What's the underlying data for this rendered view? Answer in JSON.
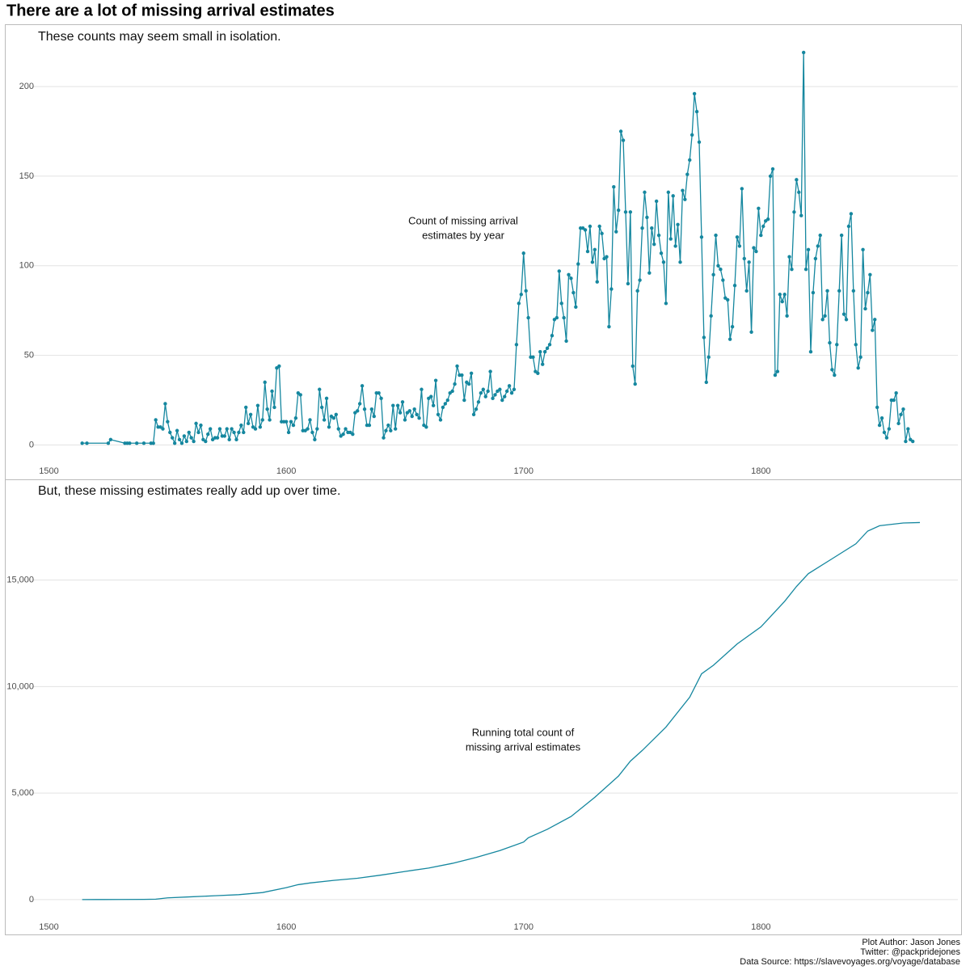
{
  "title": "There are a lot of missing arrival estimates",
  "footer": [
    "Plot Author: Jason Jones",
    "Twitter: @packpridejones",
    "Data Source: https://slavevoyages.org/voyage/database"
  ],
  "chart_data": [
    {
      "type": "line",
      "subtitle": "These counts may seem small in isolation.",
      "annotation": [
        "Count of missing arrival",
        "estimates by year"
      ],
      "markers": true,
      "color": "#15879f",
      "grid": true,
      "xlim": [
        1493,
        1883
      ],
      "xticks": [
        1500,
        1600,
        1700,
        1800
      ],
      "ylim": [
        -7,
        228
      ],
      "yticks": [
        0,
        50,
        100,
        150,
        200
      ],
      "x": [
        1514,
        1516,
        1525,
        1526,
        1532,
        1533,
        1534,
        1537,
        1540,
        1543,
        1544,
        1545,
        1546,
        1547,
        1548,
        1549,
        1550,
        1551,
        1552,
        1553,
        1554,
        1555,
        1556,
        1557,
        1558,
        1559,
        1560,
        1561,
        1562,
        1563,
        1564,
        1565,
        1566,
        1567,
        1568,
        1569,
        1570,
        1571,
        1572,
        1573,
        1574,
        1575,
        1576,
        1577,
        1578,
        1579,
        1580,
        1581,
        1582,
        1583,
        1584,
        1585,
        1586,
        1587,
        1588,
        1589,
        1590,
        1591,
        1592,
        1593,
        1594,
        1595,
        1596,
        1597,
        1598,
        1599,
        1600,
        1601,
        1602,
        1603,
        1604,
        1605,
        1606,
        1607,
        1608,
        1609,
        1610,
        1611,
        1612,
        1613,
        1614,
        1615,
        1616,
        1617,
        1618,
        1619,
        1620,
        1621,
        1622,
        1623,
        1624,
        1625,
        1626,
        1627,
        1628,
        1629,
        1630,
        1631,
        1632,
        1633,
        1634,
        1635,
        1636,
        1637,
        1638,
        1639,
        1640,
        1641,
        1642,
        1643,
        1644,
        1645,
        1646,
        1647,
        1648,
        1649,
        1650,
        1651,
        1652,
        1653,
        1654,
        1655,
        1656,
        1657,
        1658,
        1659,
        1660,
        1661,
        1662,
        1663,
        1664,
        1665,
        1666,
        1667,
        1668,
        1669,
        1670,
        1671,
        1672,
        1673,
        1674,
        1675,
        1676,
        1677,
        1678,
        1679,
        1680,
        1681,
        1682,
        1683,
        1684,
        1685,
        1686,
        1687,
        1688,
        1689,
        1690,
        1691,
        1692,
        1693,
        1694,
        1695,
        1696,
        1697,
        1698,
        1699,
        1700,
        1701,
        1702,
        1703,
        1704,
        1705,
        1706,
        1707,
        1708,
        1709,
        1710,
        1711,
        1712,
        1713,
        1714,
        1715,
        1716,
        1717,
        1718,
        1719,
        1720,
        1721,
        1722,
        1723,
        1724,
        1725,
        1726,
        1727,
        1728,
        1729,
        1730,
        1731,
        1732,
        1733,
        1734,
        1735,
        1736,
        1737,
        1738,
        1739,
        1740,
        1741,
        1742,
        1743,
        1744,
        1745,
        1746,
        1747,
        1748,
        1749,
        1750,
        1751,
        1752,
        1753,
        1754,
        1755,
        1756,
        1757,
        1758,
        1759,
        1760,
        1761,
        1762,
        1763,
        1764,
        1765,
        1766,
        1767,
        1768,
        1769,
        1770,
        1771,
        1772,
        1773,
        1774,
        1775,
        1776,
        1777,
        1778,
        1779,
        1780,
        1781,
        1782,
        1783,
        1784,
        1785,
        1786,
        1787,
        1788,
        1789,
        1790,
        1791,
        1792,
        1793,
        1794,
        1795,
        1796,
        1797,
        1798,
        1799,
        1800,
        1801,
        1802,
        1803,
        1804,
        1805,
        1806,
        1807,
        1808,
        1809,
        1810,
        1811,
        1812,
        1813,
        1814,
        1815,
        1816,
        1817,
        1818,
        1819,
        1820,
        1821,
        1822,
        1823,
        1824,
        1825,
        1826,
        1827,
        1828,
        1829,
        1830,
        1831,
        1832,
        1833,
        1834,
        1835,
        1836,
        1837,
        1838,
        1839,
        1840,
        1841,
        1842,
        1843,
        1844,
        1845,
        1846,
        1847,
        1848,
        1849,
        1850,
        1851,
        1852,
        1853,
        1854,
        1855,
        1856,
        1857,
        1858,
        1859,
        1860,
        1861,
        1862,
        1863,
        1864
      ],
      "values": [
        1,
        1,
        1,
        3,
        1,
        1,
        1,
        1,
        1,
        1,
        1,
        14,
        10,
        10,
        9,
        23,
        13,
        7,
        4,
        1,
        8,
        3,
        1,
        5,
        2,
        7,
        4,
        2,
        12,
        7,
        11,
        3,
        2,
        6,
        9,
        3,
        4,
        4,
        9,
        5,
        5,
        9,
        3,
        9,
        7,
        3,
        7,
        11,
        7,
        21,
        12,
        17,
        10,
        9,
        22,
        10,
        14,
        35,
        20,
        14,
        30,
        21,
        43,
        44,
        13,
        13,
        13,
        7,
        13,
        11,
        15,
        29,
        28,
        8,
        8,
        9,
        14,
        7,
        3,
        9,
        31,
        21,
        14,
        26,
        10,
        16,
        15,
        17,
        9,
        5,
        6,
        9,
        7,
        7,
        6,
        18,
        19,
        23,
        33,
        20,
        11,
        11,
        20,
        16,
        29,
        29,
        26,
        4,
        8,
        11,
        8,
        22,
        9,
        22,
        18,
        24,
        14,
        18,
        19,
        16,
        20,
        17,
        15,
        31,
        11,
        10,
        26,
        27,
        22,
        36,
        17,
        14,
        21,
        23,
        25,
        29,
        30,
        34,
        44,
        39,
        39,
        25,
        35,
        34,
        40,
        17,
        20,
        24,
        29,
        31,
        27,
        30,
        41,
        26,
        28,
        30,
        31,
        25,
        27,
        30,
        33,
        29,
        31,
        56,
        79,
        84,
        107,
        86,
        71,
        49,
        49,
        41,
        40,
        52,
        45,
        52,
        54,
        56,
        61,
        70,
        71,
        97,
        79,
        71,
        58,
        95,
        93,
        85,
        77,
        101,
        121,
        121,
        120,
        108,
        122,
        102,
        109,
        91,
        122,
        118,
        104,
        105,
        66,
        87,
        144,
        119,
        131,
        175,
        170,
        130,
        90,
        130,
        44,
        34,
        86,
        92,
        121,
        141,
        127,
        96,
        121,
        112,
        136,
        117,
        107,
        102,
        79,
        141,
        115,
        139,
        111,
        123,
        102,
        142,
        137,
        151,
        159,
        173,
        196,
        186,
        169,
        116,
        60,
        35,
        49,
        72,
        95,
        117,
        100,
        98,
        92,
        82,
        81,
        59,
        66,
        89,
        116,
        111,
        143,
        104,
        86,
        102,
        63,
        110,
        108,
        132,
        117,
        122,
        125,
        126,
        150,
        154,
        39,
        41,
        84,
        80,
        84,
        72,
        105,
        98,
        130,
        148,
        141,
        128,
        219,
        98,
        109,
        52,
        85,
        104,
        111,
        117,
        70,
        72,
        86,
        57,
        42,
        39,
        56,
        86,
        117,
        73,
        70,
        122,
        129,
        86,
        56,
        43,
        49,
        109,
        76,
        85,
        95,
        64,
        70,
        21,
        11,
        15,
        7,
        4,
        9,
        25,
        25,
        29,
        12,
        17,
        20,
        2,
        9,
        3,
        2
      ]
    },
    {
      "type": "line",
      "subtitle": "But, these missing estimates really add up over time.",
      "annotation": [
        "Running total count of",
        "missing arrival estimates"
      ],
      "markers": false,
      "color": "#15879f",
      "grid": true,
      "xlim": [
        1493,
        1883
      ],
      "xticks": [
        1500,
        1600,
        1700,
        1800
      ],
      "ylim": [
        -650,
        18400
      ],
      "yticks": [
        0,
        {
          "value": 5000,
          "label": "5,000"
        },
        {
          "value": 10000,
          "label": "10,000"
        },
        {
          "value": 15000,
          "label": "15,000"
        }
      ],
      "x": [
        1514,
        1520,
        1530,
        1540,
        1545,
        1550,
        1560,
        1570,
        1580,
        1590,
        1600,
        1605,
        1610,
        1620,
        1630,
        1640,
        1650,
        1660,
        1670,
        1680,
        1690,
        1700,
        1702,
        1710,
        1720,
        1730,
        1740,
        1745,
        1750,
        1760,
        1770,
        1775,
        1780,
        1790,
        1800,
        1810,
        1815,
        1820,
        1830,
        1840,
        1845,
        1850,
        1860,
        1867
      ],
      "values": [
        1,
        2,
        5,
        10,
        20,
        80,
        130,
        180,
        230,
        330,
        560,
        700,
        780,
        900,
        1000,
        1150,
        1320,
        1480,
        1700,
        1980,
        2300,
        2700,
        2900,
        3300,
        3900,
        4800,
        5800,
        6500,
        7000,
        8100,
        9500,
        10600,
        11000,
        12000,
        12800,
        14000,
        14700,
        15300,
        16000,
        16700,
        17300,
        17550,
        17680,
        17700
      ]
    }
  ]
}
